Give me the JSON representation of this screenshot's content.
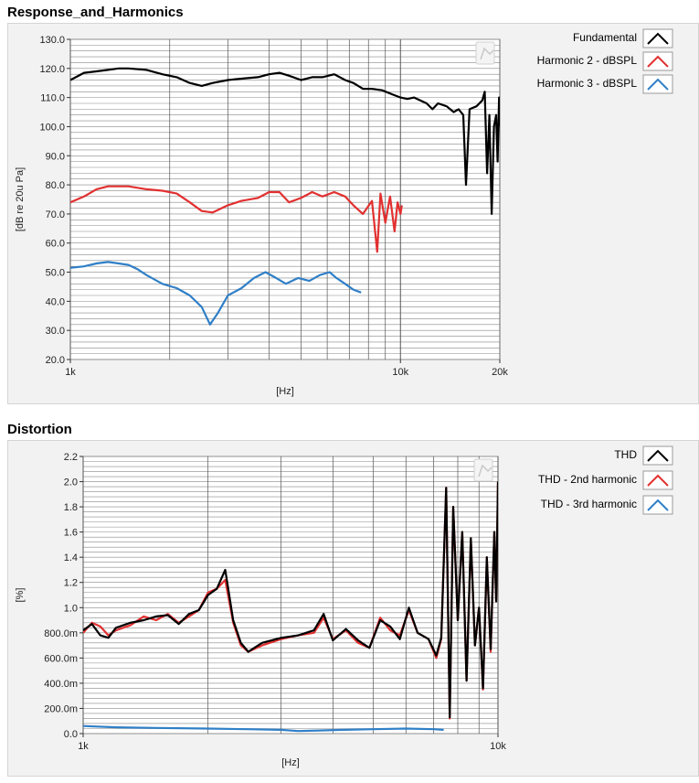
{
  "sections": {
    "response_title": "Response_and_Harmonics",
    "distortion_title": "Distortion"
  },
  "chart_data": [
    {
      "type": "line",
      "title": "Response_and_Harmonics",
      "xlabel": "[Hz]",
      "ylabel": "[dB re 20u Pa]",
      "xscale": "log",
      "xlim": [
        1000,
        20000
      ],
      "ylim": [
        20,
        130
      ],
      "xticks": [
        {
          "v": 1000,
          "label": "1k"
        },
        {
          "v": 10000,
          "label": "10k"
        },
        {
          "v": 20000,
          "label": "20k"
        }
      ],
      "yticks": [
        {
          "v": 20,
          "label": "20.0"
        },
        {
          "v": 30,
          "label": "30.0"
        },
        {
          "v": 40,
          "label": "40.0"
        },
        {
          "v": 50,
          "label": "50.0"
        },
        {
          "v": 60,
          "label": "60.0"
        },
        {
          "v": 70,
          "label": "70.0"
        },
        {
          "v": 80,
          "label": "80.0"
        },
        {
          "v": 90,
          "label": "90.0"
        },
        {
          "v": 100,
          "label": "100.0"
        },
        {
          "v": 110,
          "label": "110.0"
        },
        {
          "v": 120,
          "label": "120.0"
        },
        {
          "v": 130,
          "label": "130.0"
        }
      ],
      "grid": true,
      "legend_position": "right",
      "series": [
        {
          "name": "Fundamental",
          "color": "#000000",
          "points": [
            [
              1000,
              116
            ],
            [
              1100,
              118.5
            ],
            [
              1200,
              119
            ],
            [
              1300,
              119.5
            ],
            [
              1400,
              120
            ],
            [
              1500,
              120
            ],
            [
              1700,
              119.5
            ],
            [
              1900,
              118
            ],
            [
              2100,
              117
            ],
            [
              2300,
              115
            ],
            [
              2500,
              114
            ],
            [
              2700,
              115
            ],
            [
              3000,
              116
            ],
            [
              3300,
              116.5
            ],
            [
              3700,
              117
            ],
            [
              4000,
              118
            ],
            [
              4300,
              118.5
            ],
            [
              4600,
              117.5
            ],
            [
              5000,
              116
            ],
            [
              5400,
              117
            ],
            [
              5800,
              117
            ],
            [
              6300,
              118
            ],
            [
              6800,
              116
            ],
            [
              7200,
              115
            ],
            [
              7700,
              113
            ],
            [
              8200,
              113
            ],
            [
              8800,
              112.5
            ],
            [
              9500,
              111
            ],
            [
              10000,
              110
            ],
            [
              10500,
              109.5
            ],
            [
              11000,
              110
            ],
            [
              12000,
              108
            ],
            [
              12500,
              106
            ],
            [
              13000,
              108
            ],
            [
              13800,
              107
            ],
            [
              14500,
              105
            ],
            [
              15000,
              106
            ],
            [
              15500,
              104
            ],
            [
              15800,
              80
            ],
            [
              16200,
              106
            ],
            [
              17000,
              107
            ],
            [
              17700,
              109
            ],
            [
              18000,
              112
            ],
            [
              18300,
              84
            ],
            [
              18600,
              104
            ],
            [
              18900,
              70
            ],
            [
              19200,
              100
            ],
            [
              19500,
              104
            ],
            [
              19700,
              88
            ],
            [
              19900,
              110
            ],
            [
              20000,
              100
            ]
          ]
        },
        {
          "name": "Harmonic 2 - dBSPL",
          "color": "#e23030",
          "points": [
            [
              1000,
              74
            ],
            [
              1100,
              76
            ],
            [
              1200,
              78.5
            ],
            [
              1300,
              79.5
            ],
            [
              1400,
              79.5
            ],
            [
              1500,
              79.5
            ],
            [
              1700,
              78.5
            ],
            [
              1900,
              78
            ],
            [
              2100,
              77
            ],
            [
              2300,
              74
            ],
            [
              2500,
              71
            ],
            [
              2700,
              70.5
            ],
            [
              3000,
              73
            ],
            [
              3300,
              74.5
            ],
            [
              3700,
              75.5
            ],
            [
              4000,
              77.5
            ],
            [
              4300,
              77.5
            ],
            [
              4600,
              74
            ],
            [
              5000,
              75.5
            ],
            [
              5400,
              77.5
            ],
            [
              5800,
              76
            ],
            [
              6300,
              77.5
            ],
            [
              6800,
              76
            ],
            [
              7200,
              73
            ],
            [
              7700,
              70
            ],
            [
              8200,
              74.5
            ],
            [
              8500,
              57
            ],
            [
              8700,
              77
            ],
            [
              9000,
              67
            ],
            [
              9300,
              76
            ],
            [
              9600,
              64
            ],
            [
              9800,
              74
            ],
            [
              10000,
              70
            ],
            [
              10100,
              73
            ]
          ]
        },
        {
          "name": "Harmonic 3 - dBSPL",
          "color": "#2f7fc7",
          "points": [
            [
              1000,
              51.5
            ],
            [
              1100,
              52
            ],
            [
              1200,
              53
            ],
            [
              1300,
              53.5
            ],
            [
              1400,
              53
            ],
            [
              1500,
              52.5
            ],
            [
              1600,
              51
            ],
            [
              1700,
              49
            ],
            [
              1900,
              46
            ],
            [
              2100,
              44.5
            ],
            [
              2300,
              42
            ],
            [
              2500,
              38
            ],
            [
              2650,
              32
            ],
            [
              2800,
              36
            ],
            [
              3000,
              42
            ],
            [
              3300,
              44.5
            ],
            [
              3600,
              48
            ],
            [
              3900,
              50
            ],
            [
              4200,
              48
            ],
            [
              4500,
              46
            ],
            [
              4900,
              48
            ],
            [
              5300,
              47
            ],
            [
              5700,
              49
            ],
            [
              6100,
              50
            ],
            [
              6400,
              48
            ],
            [
              6800,
              46
            ],
            [
              7200,
              44
            ],
            [
              7600,
              43
            ]
          ]
        }
      ]
    },
    {
      "type": "line",
      "title": "Distortion",
      "xlabel": "[Hz]",
      "ylabel": "[%]",
      "xscale": "log",
      "xlim": [
        1000,
        10000
      ],
      "ylim": [
        0,
        2.2
      ],
      "xticks": [
        {
          "v": 1000,
          "label": "1k"
        },
        {
          "v": 10000,
          "label": "10k"
        }
      ],
      "yticks": [
        {
          "v": 0,
          "label": "0.0"
        },
        {
          "v": 0.2,
          "label": "200.0m"
        },
        {
          "v": 0.4,
          "label": "400.0m"
        },
        {
          "v": 0.6,
          "label": "600.0m"
        },
        {
          "v": 0.8,
          "label": "800.0m"
        },
        {
          "v": 1.0,
          "label": "1.0"
        },
        {
          "v": 1.2,
          "label": "1.2"
        },
        {
          "v": 1.4,
          "label": "1.4"
        },
        {
          "v": 1.6,
          "label": "1.6"
        },
        {
          "v": 1.8,
          "label": "1.8"
        },
        {
          "v": 2.0,
          "label": "2.0"
        },
        {
          "v": 2.2,
          "label": "2.2"
        }
      ],
      "grid": true,
      "legend_position": "right",
      "series": [
        {
          "name": "THD - 2nd harmonic",
          "color": "#e23030",
          "points": [
            [
              1000,
              0.8
            ],
            [
              1050,
              0.88
            ],
            [
              1100,
              0.85
            ],
            [
              1150,
              0.78
            ],
            [
              1200,
              0.82
            ],
            [
              1300,
              0.86
            ],
            [
              1400,
              0.93
            ],
            [
              1500,
              0.9
            ],
            [
              1600,
              0.95
            ],
            [
              1700,
              0.88
            ],
            [
              1800,
              0.93
            ],
            [
              1900,
              0.98
            ],
            [
              2000,
              1.12
            ],
            [
              2100,
              1.15
            ],
            [
              2200,
              1.22
            ],
            [
              2300,
              0.88
            ],
            [
              2400,
              0.7
            ],
            [
              2500,
              0.65
            ],
            [
              2700,
              0.7
            ],
            [
              3000,
              0.75
            ],
            [
              3300,
              0.78
            ],
            [
              3600,
              0.8
            ],
            [
              3800,
              0.92
            ],
            [
              4000,
              0.75
            ],
            [
              4300,
              0.82
            ],
            [
              4600,
              0.72
            ],
            [
              4900,
              0.68
            ],
            [
              5200,
              0.92
            ],
            [
              5500,
              0.82
            ],
            [
              5800,
              0.78
            ],
            [
              6100,
              0.98
            ],
            [
              6400,
              0.8
            ],
            [
              6800,
              0.75
            ],
            [
              7100,
              0.6
            ],
            [
              7300,
              0.75
            ],
            [
              7500,
              1.95
            ],
            [
              7650,
              0.12
            ],
            [
              7800,
              1.8
            ],
            [
              8000,
              0.9
            ],
            [
              8200,
              1.6
            ],
            [
              8400,
              0.42
            ],
            [
              8600,
              1.55
            ],
            [
              8800,
              0.7
            ],
            [
              9000,
              1.0
            ],
            [
              9200,
              0.35
            ],
            [
              9400,
              1.4
            ],
            [
              9600,
              0.65
            ],
            [
              9800,
              1.6
            ],
            [
              9900,
              1.05
            ],
            [
              10000,
              2.0
            ]
          ]
        },
        {
          "name": "THD",
          "color": "#000000",
          "points": [
            [
              1000,
              0.82
            ],
            [
              1050,
              0.87
            ],
            [
              1100,
              0.78
            ],
            [
              1150,
              0.76
            ],
            [
              1200,
              0.84
            ],
            [
              1300,
              0.88
            ],
            [
              1400,
              0.9
            ],
            [
              1500,
              0.93
            ],
            [
              1600,
              0.94
            ],
            [
              1700,
              0.87
            ],
            [
              1800,
              0.95
            ],
            [
              1900,
              0.98
            ],
            [
              2000,
              1.1
            ],
            [
              2100,
              1.15
            ],
            [
              2200,
              1.3
            ],
            [
              2300,
              0.9
            ],
            [
              2400,
              0.72
            ],
            [
              2500,
              0.65
            ],
            [
              2700,
              0.72
            ],
            [
              3000,
              0.76
            ],
            [
              3300,
              0.78
            ],
            [
              3600,
              0.82
            ],
            [
              3800,
              0.95
            ],
            [
              4000,
              0.74
            ],
            [
              4300,
              0.83
            ],
            [
              4600,
              0.74
            ],
            [
              4900,
              0.68
            ],
            [
              5200,
              0.9
            ],
            [
              5500,
              0.85
            ],
            [
              5800,
              0.75
            ],
            [
              6100,
              1.0
            ],
            [
              6400,
              0.8
            ],
            [
              6800,
              0.75
            ],
            [
              7100,
              0.62
            ],
            [
              7300,
              0.76
            ],
            [
              7500,
              1.95
            ],
            [
              7650,
              0.13
            ],
            [
              7800,
              1.8
            ],
            [
              8000,
              0.9
            ],
            [
              8200,
              1.6
            ],
            [
              8400,
              0.42
            ],
            [
              8600,
              1.55
            ],
            [
              8800,
              0.7
            ],
            [
              9000,
              1.0
            ],
            [
              9200,
              0.36
            ],
            [
              9400,
              1.4
            ],
            [
              9600,
              0.67
            ],
            [
              9800,
              1.6
            ],
            [
              9900,
              1.05
            ],
            [
              10000,
              2.0
            ]
          ]
        },
        {
          "name": "THD - 3rd harmonic",
          "color": "#2f7fc7",
          "points": [
            [
              1000,
              0.06
            ],
            [
              1200,
              0.05
            ],
            [
              1500,
              0.045
            ],
            [
              2000,
              0.04
            ],
            [
              2500,
              0.035
            ],
            [
              3000,
              0.03
            ],
            [
              3300,
              0.02
            ],
            [
              3700,
              0.025
            ],
            [
              4200,
              0.03
            ],
            [
              5000,
              0.035
            ],
            [
              6000,
              0.04
            ],
            [
              7000,
              0.035
            ],
            [
              7400,
              0.03
            ]
          ]
        }
      ]
    }
  ],
  "legends": [
    [
      {
        "name": "Fundamental",
        "color": "#000000"
      },
      {
        "name": "Harmonic 2 - dBSPL",
        "color": "#e23030"
      },
      {
        "name": "Harmonic 3 - dBSPL",
        "color": "#2f7fc7"
      }
    ],
    [
      {
        "name": "THD",
        "color": "#000000"
      },
      {
        "name": "THD - 2nd harmonic",
        "color": "#e23030"
      },
      {
        "name": "THD - 3rd harmonic",
        "color": "#2f7fc7"
      }
    ]
  ]
}
